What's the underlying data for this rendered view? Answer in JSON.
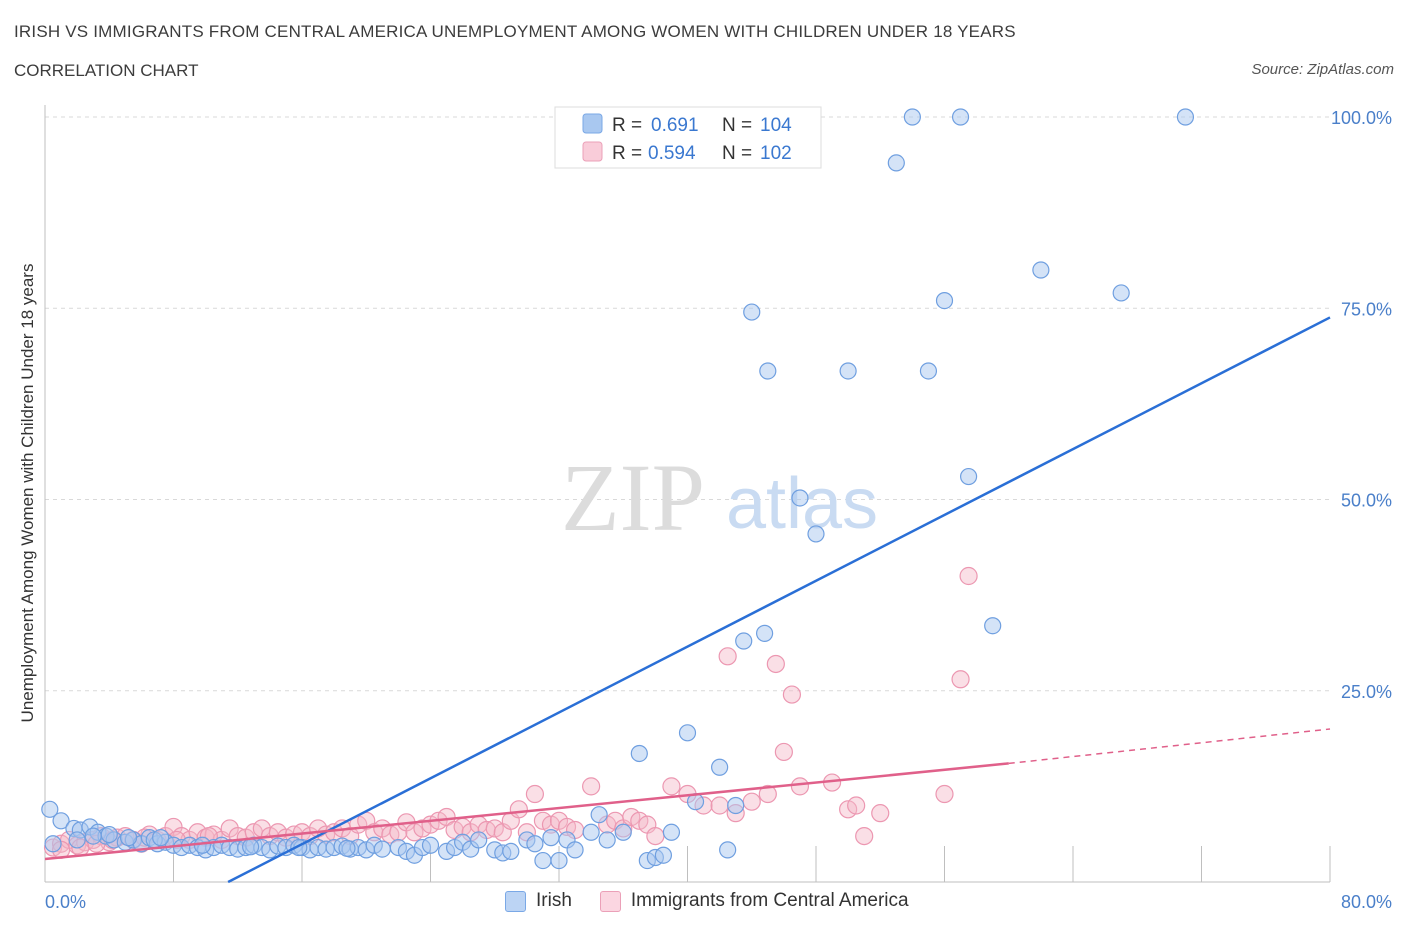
{
  "title": "IRISH VS IMMIGRANTS FROM CENTRAL AMERICA UNEMPLOYMENT AMONG WOMEN WITH CHILDREN UNDER 18 YEARS",
  "subtitle": "CORRELATION CHART",
  "source": "Source: ZipAtlas.com",
  "watermark": {
    "zip": "ZIP",
    "atlas": "atlas"
  },
  "colors": {
    "irish": "#a9c8f0",
    "irish_line": "#2a6fd6",
    "central": "#f4b7c8",
    "central_line": "#e0608a",
    "axis_text": "#4a7fc9"
  },
  "stats_legend": [
    {
      "r_label": "R = ",
      "r_value": "0.691",
      "n_label": "N = ",
      "n_value": "104"
    },
    {
      "r_label": "R = ",
      "r_value": "0.594",
      "n_label": "N = ",
      "n_value": "102"
    }
  ],
  "chart_data": {
    "type": "scatter",
    "xlabel": "",
    "ylabel": "Unemployment Among Women with Children Under 18 years",
    "xlim": [
      0,
      80
    ],
    "ylim": [
      0,
      100
    ],
    "x_tick_labels": [
      "0.0%",
      "80.0%"
    ],
    "y_tick_labels": [
      "25.0%",
      "50.0%",
      "75.0%",
      "100.0%"
    ],
    "y_ticks": [
      25,
      50,
      75,
      100
    ],
    "grid": true,
    "legend": "bottom",
    "series": [
      {
        "name": "Irish",
        "trend": {
          "x": [
            11.4,
            80
          ],
          "y": [
            0,
            73.8
          ]
        },
        "points": [
          [
            0.3,
            9.5
          ],
          [
            1,
            8
          ],
          [
            1.8,
            7
          ],
          [
            2.2,
            6.8
          ],
          [
            2.8,
            7.2
          ],
          [
            3.3,
            6.5
          ],
          [
            3.8,
            6
          ],
          [
            4.3,
            5.5
          ],
          [
            5,
            5.2
          ],
          [
            5.5,
            5.5
          ],
          [
            6,
            5
          ],
          [
            6.5,
            5.8
          ],
          [
            7,
            5
          ],
          [
            7.5,
            5.2
          ],
          [
            8,
            4.8
          ],
          [
            8.5,
            4.5
          ],
          [
            9,
            4.8
          ],
          [
            9.5,
            4.5
          ],
          [
            10,
            4.2
          ],
          [
            10.5,
            4.5
          ],
          [
            11,
            4.8
          ],
          [
            11.5,
            4.5
          ],
          [
            12,
            4.3
          ],
          [
            12.5,
            4.5
          ],
          [
            13,
            4.8
          ],
          [
            13.5,
            4.5
          ],
          [
            14,
            4.2
          ],
          [
            14.5,
            4.7
          ],
          [
            15,
            4.5
          ],
          [
            15.5,
            4.8
          ],
          [
            16,
            4.5
          ],
          [
            16.5,
            4.2
          ],
          [
            17,
            4.5
          ],
          [
            17.5,
            4.3
          ],
          [
            18,
            4.5
          ],
          [
            18.5,
            4.7
          ],
          [
            19,
            4.3
          ],
          [
            19.5,
            4.5
          ],
          [
            20,
            4.2
          ],
          [
            20.5,
            4.8
          ],
          [
            21,
            4.3
          ],
          [
            22,
            4.5
          ],
          [
            22.5,
            4
          ],
          [
            23,
            3.5
          ],
          [
            23.5,
            4.5
          ],
          [
            24,
            4.8
          ],
          [
            25,
            4
          ],
          [
            25.5,
            4.5
          ],
          [
            26,
            5.2
          ],
          [
            26.5,
            4.3
          ],
          [
            27,
            5.5
          ],
          [
            28,
            4.2
          ],
          [
            28.5,
            3.8
          ],
          [
            29,
            4
          ],
          [
            30,
            5.5
          ],
          [
            30.5,
            5
          ],
          [
            31,
            2.8
          ],
          [
            31.5,
            5.8
          ],
          [
            32,
            2.8
          ],
          [
            32.5,
            5.5
          ],
          [
            33,
            4.2
          ],
          [
            34,
            6.5
          ],
          [
            34.5,
            8.8
          ],
          [
            35,
            5.5
          ],
          [
            36,
            6.5
          ],
          [
            37,
            16.8
          ],
          [
            37.5,
            2.8
          ],
          [
            38,
            3.2
          ],
          [
            38.5,
            3.5
          ],
          [
            39,
            6.5
          ],
          [
            40,
            19.5
          ],
          [
            40.5,
            10.5
          ],
          [
            42,
            15
          ],
          [
            42.5,
            4.2
          ],
          [
            43,
            10
          ],
          [
            43.5,
            31.5
          ],
          [
            44,
            74.5
          ],
          [
            44.8,
            32.5
          ],
          [
            45,
            66.8
          ],
          [
            47,
            50.2
          ],
          [
            48,
            45.5
          ],
          [
            50,
            66.8
          ],
          [
            53,
            94
          ],
          [
            54,
            100
          ],
          [
            55,
            66.8
          ],
          [
            56,
            76
          ],
          [
            57,
            100
          ],
          [
            57.5,
            53
          ],
          [
            59,
            33.5
          ],
          [
            62,
            80
          ],
          [
            67,
            77
          ],
          [
            71,
            100
          ],
          [
            0.5,
            5
          ],
          [
            2,
            5.5
          ],
          [
            3,
            6
          ],
          [
            4,
            6.2
          ],
          [
            5.2,
            5.8
          ],
          [
            6.8,
            5.5
          ],
          [
            7.2,
            5.8
          ],
          [
            9.8,
            4.8
          ],
          [
            12.8,
            4.6
          ],
          [
            15.8,
            4.5
          ],
          [
            18.8,
            4.4
          ]
        ]
      },
      {
        "name": "Immigrants from Central America",
        "trend": {
          "x": [
            0,
            60
          ],
          "y": [
            3,
            15.5
          ]
        },
        "trend_dashed": {
          "x": [
            60,
            80
          ],
          "y": [
            15.5,
            20
          ]
        },
        "points": [
          [
            0.5,
            4.5
          ],
          [
            1,
            5
          ],
          [
            1.5,
            5.5
          ],
          [
            2,
            4.8
          ],
          [
            2.5,
            5.2
          ],
          [
            3,
            5.5
          ],
          [
            3.5,
            6
          ],
          [
            4,
            5.2
          ],
          [
            4.5,
            5.8
          ],
          [
            5,
            6
          ],
          [
            5.5,
            5.5
          ],
          [
            6,
            5
          ],
          [
            6.5,
            6.2
          ],
          [
            7,
            5.5
          ],
          [
            7.5,
            6
          ],
          [
            8,
            7.2
          ],
          [
            8.5,
            6
          ],
          [
            9,
            5.5
          ],
          [
            9.5,
            6.5
          ],
          [
            10,
            5.8
          ],
          [
            10.5,
            6.2
          ],
          [
            11,
            5.5
          ],
          [
            11.5,
            7
          ],
          [
            12,
            6
          ],
          [
            12.5,
            5.8
          ],
          [
            13,
            6.5
          ],
          [
            13.5,
            7
          ],
          [
            14,
            6
          ],
          [
            14.5,
            6.5
          ],
          [
            15,
            5.8
          ],
          [
            15.5,
            6.2
          ],
          [
            16,
            6.5
          ],
          [
            16.5,
            6
          ],
          [
            17,
            7
          ],
          [
            17.5,
            6.2
          ],
          [
            18,
            6.5
          ],
          [
            18.5,
            7
          ],
          [
            19,
            6
          ],
          [
            19.5,
            7.5
          ],
          [
            20,
            8
          ],
          [
            20.5,
            6.5
          ],
          [
            21,
            7
          ],
          [
            21.5,
            6.2
          ],
          [
            22,
            6.5
          ],
          [
            22.5,
            7.8
          ],
          [
            23,
            6.5
          ],
          [
            23.5,
            7
          ],
          [
            24,
            7.5
          ],
          [
            24.5,
            8
          ],
          [
            25,
            8.5
          ],
          [
            25.5,
            6.8
          ],
          [
            26,
            7.2
          ],
          [
            26.5,
            6.5
          ],
          [
            27,
            7.5
          ],
          [
            27.5,
            6.8
          ],
          [
            28,
            7
          ],
          [
            28.5,
            6.5
          ],
          [
            29,
            8
          ],
          [
            29.5,
            9.5
          ],
          [
            30,
            6.5
          ],
          [
            30.5,
            11.5
          ],
          [
            31,
            8
          ],
          [
            31.5,
            7.5
          ],
          [
            32,
            8
          ],
          [
            32.5,
            7.2
          ],
          [
            33,
            6.8
          ],
          [
            34,
            12.5
          ],
          [
            35,
            7.5
          ],
          [
            35.5,
            8
          ],
          [
            36,
            7
          ],
          [
            36.5,
            8.5
          ],
          [
            37,
            8
          ],
          [
            37.5,
            7.5
          ],
          [
            38,
            6
          ],
          [
            39,
            12.5
          ],
          [
            40,
            11.5
          ],
          [
            41,
            10
          ],
          [
            42,
            10
          ],
          [
            42.5,
            29.5
          ],
          [
            43,
            9
          ],
          [
            44,
            10.5
          ],
          [
            45,
            11.5
          ],
          [
            45.5,
            28.5
          ],
          [
            46,
            17
          ],
          [
            46.5,
            24.5
          ],
          [
            47,
            12.5
          ],
          [
            49,
            13
          ],
          [
            50,
            9.5
          ],
          [
            50.5,
            10
          ],
          [
            51,
            6
          ],
          [
            52,
            9
          ],
          [
            56,
            11.5
          ],
          [
            57.5,
            40
          ],
          [
            57,
            26.5
          ],
          [
            1,
            4.2
          ],
          [
            2.2,
            4.5
          ],
          [
            3.2,
            5
          ],
          [
            4.2,
            5.5
          ],
          [
            6.2,
            5.8
          ],
          [
            8.2,
            5.5
          ],
          [
            10.2,
            6
          ]
        ]
      }
    ]
  }
}
